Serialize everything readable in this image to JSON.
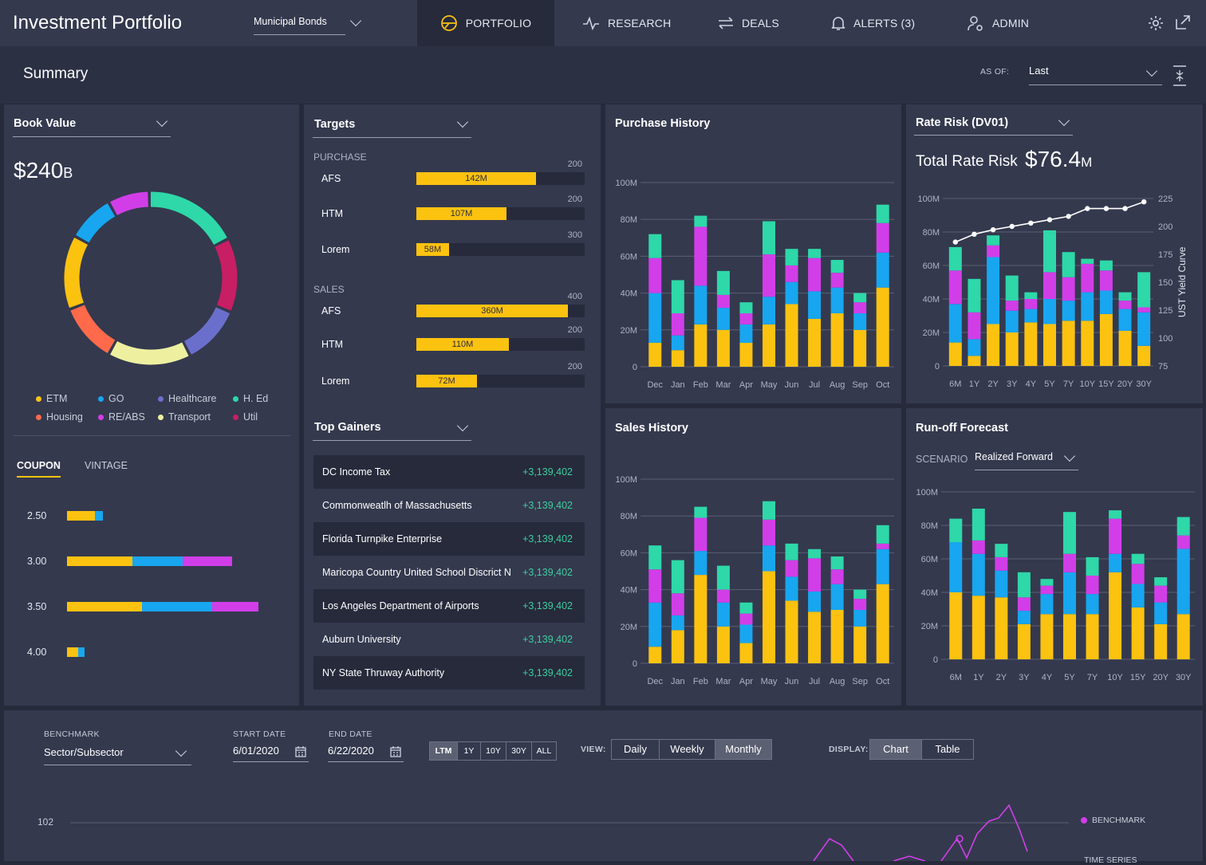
{
  "app": {
    "title": "Investment Portfolio"
  },
  "header": {
    "selector": "Municipal Bonds",
    "nav": [
      {
        "label": "PORTFOLIO",
        "icon": "portfolio-icon"
      },
      {
        "label": "RESEARCH",
        "icon": "pulse-icon"
      },
      {
        "label": "DEALS",
        "icon": "swap-arrows-icon"
      },
      {
        "label": "ALERTS (3)",
        "icon": "bell-icon"
      },
      {
        "label": "ADMIN",
        "icon": "user-gear-icon"
      }
    ]
  },
  "summary": {
    "title": "Summary",
    "as_of_label": "AS OF:",
    "as_of_value": "Last"
  },
  "book_value": {
    "title": "Book Value",
    "total": "$240",
    "unit": "B",
    "legend": [
      {
        "label": "ETM",
        "color": "#fcc210"
      },
      {
        "label": "GO",
        "color": "#18a6f0"
      },
      {
        "label": "Healthcare",
        "color": "#6b6fcc"
      },
      {
        "label": "H. Ed",
        "color": "#2ed8a8"
      },
      {
        "label": "Housing",
        "color": "#ff6a4a"
      },
      {
        "label": "RE/ABS",
        "color": "#d13ee8"
      },
      {
        "label": "Transport",
        "color": "#eef0a0"
      },
      {
        "label": "Util",
        "color": "#c81e64"
      }
    ],
    "tabs": [
      "COUPON",
      "VINTAGE"
    ],
    "coupons": [
      {
        "label": "2.50",
        "values": [
          35,
          10,
          0
        ]
      },
      {
        "label": "3.00",
        "values": [
          82,
          63,
          62
        ]
      },
      {
        "label": "3.50",
        "values": [
          94,
          88,
          58
        ]
      },
      {
        "label": "4.00",
        "values": [
          14,
          8,
          0
        ]
      }
    ]
  },
  "targets": {
    "title": "Targets",
    "purchase_label": "PURCHASE",
    "sales_label": "SALES",
    "purchase": [
      {
        "label": "AFS",
        "value": "142M",
        "max": "200",
        "fraction": 0.71
      },
      {
        "label": "HTM",
        "value": "107M",
        "max": "200",
        "fraction": 0.535
      },
      {
        "label": "Lorem",
        "value": "58M",
        "max": "300",
        "fraction": 0.193
      }
    ],
    "sales": [
      {
        "label": "AFS",
        "value": "360M",
        "max": "400",
        "fraction": 0.9
      },
      {
        "label": "HTM",
        "value": "110M",
        "max": "200",
        "fraction": 0.55
      },
      {
        "label": "Lorem",
        "value": "72M",
        "max": "200",
        "fraction": 0.36
      }
    ]
  },
  "top_gainers": {
    "title": "Top Gainers",
    "rows": [
      {
        "name": "DC Income Tax",
        "value": "+3,139,402"
      },
      {
        "name": "Commonweatlh of Massachusetts",
        "value": "+3,139,402"
      },
      {
        "name": "Florida Turnpike Enterprise",
        "value": "+3,139,402"
      },
      {
        "name": "Maricopa Country United School Discrict N",
        "value": "+3,139,402"
      },
      {
        "name": "Los Angeles Department of Airports",
        "value": "+3,139,402"
      },
      {
        "name": "Auburn University",
        "value": "+3,139,402"
      },
      {
        "name": "NY State Thruway Authority",
        "value": "+3,139,402"
      }
    ]
  },
  "rate_risk": {
    "title": "Rate Risk (DV01)",
    "total_label": "Total Rate Risk",
    "total_value": "$76.4",
    "total_unit": "M",
    "right_axis_label": "UST Yield Curve"
  },
  "runoff": {
    "title": "Run-off Forecast",
    "scenario_label": "SCENARIO",
    "scenario_value": "Realized Forward"
  },
  "purchase_history": {
    "title": "Purchase History"
  },
  "sales_history": {
    "title": "Sales History"
  },
  "bottom": {
    "benchmark_label": "BENCHMARK",
    "benchmark_value": "Sector/Subsector",
    "start_label": "START DATE",
    "start_value": "6/01/2020",
    "end_label": "END DATE",
    "end_value": "6/22/2020",
    "ranges": [
      "LTM",
      "1Y",
      "10Y",
      "30Y",
      "ALL"
    ],
    "view_label": "VIEW:",
    "views": [
      "Daily",
      "Weekly",
      "Monthly"
    ],
    "display_label": "DISPLAY:",
    "displays": [
      "Chart",
      "Table"
    ],
    "y_tick": "102",
    "legend_benchmark": "BENCHMARK",
    "legend_timeseries": "TIME SERIES"
  },
  "colors": {
    "yellow": "#fcc210",
    "blue": "#18a6f0",
    "magenta": "#d13ee8",
    "teal": "#2ed8a8"
  },
  "chart_data": [
    {
      "type": "bar",
      "id": "purchase-history",
      "title": "Purchase History",
      "categories": [
        "Dec",
        "Jan",
        "Feb",
        "Mar",
        "Apr",
        "May",
        "Jun",
        "Jul",
        "Aug",
        "Sep",
        "Oct"
      ],
      "ylim": [
        0,
        100
      ],
      "yticks": [
        "0",
        "20M",
        "40M",
        "60M",
        "80M",
        "100M"
      ],
      "series": [
        {
          "values": [
            13,
            9,
            23,
            20,
            13,
            23,
            34,
            26,
            29,
            20,
            43
          ]
        },
        {
          "values": [
            27,
            8,
            21,
            12,
            10,
            15,
            12,
            15,
            14,
            9,
            19
          ]
        },
        {
          "values": [
            19,
            12,
            32,
            7,
            6,
            23,
            9,
            18,
            8,
            6,
            16
          ]
        },
        {
          "values": [
            13,
            18,
            6,
            13,
            6,
            18,
            9,
            5,
            7,
            5,
            10
          ]
        }
      ]
    },
    {
      "type": "bar",
      "id": "sales-history",
      "title": "Sales History",
      "categories": [
        "Dec",
        "Jan",
        "Feb",
        "Mar",
        "Apr",
        "May",
        "Jun",
        "Jul",
        "Aug",
        "Sep",
        "Oct"
      ],
      "ylim": [
        0,
        100
      ],
      "yticks": [
        "0",
        "20M",
        "40M",
        "60M",
        "80M",
        "100M"
      ],
      "series": [
        {
          "values": [
            9,
            18,
            48,
            20,
            11,
            50,
            34,
            28,
            29,
            20,
            43
          ]
        },
        {
          "values": [
            24,
            8,
            13,
            13,
            10,
            14,
            13,
            11,
            14,
            9,
            19
          ]
        },
        {
          "values": [
            18,
            12,
            18,
            7,
            6,
            14,
            9,
            18,
            8,
            6,
            3
          ]
        },
        {
          "values": [
            13,
            18,
            6,
            13,
            6,
            10,
            9,
            5,
            7,
            5,
            10
          ]
        }
      ]
    },
    {
      "type": "bar",
      "id": "rate-risk",
      "title": "Rate Risk (DV01)",
      "categories": [
        "6M",
        "1Y",
        "2Y",
        "3Y",
        "4Y",
        "5Y",
        "7Y",
        "10Y",
        "15Y",
        "20Y",
        "30Y"
      ],
      "ylim": [
        0,
        100
      ],
      "yticks": [
        "0",
        "20M",
        "40M",
        "60M",
        "80M",
        "100M"
      ],
      "y2ticks": [
        "75",
        "100",
        "125",
        "150",
        "175",
        "200",
        "225"
      ],
      "y2lim": [
        75,
        225
      ],
      "y2label": "UST Yield Curve",
      "series": [
        {
          "values": [
            14,
            6,
            25,
            20,
            26,
            25,
            27,
            27,
            31,
            21,
            12
          ]
        },
        {
          "values": [
            23,
            10,
            40,
            13,
            8,
            15,
            12,
            17,
            14,
            13,
            20
          ]
        },
        {
          "values": [
            20,
            16,
            7,
            6,
            6,
            16,
            14,
            17,
            12,
            5,
            3
          ]
        },
        {
          "values": [
            14,
            20,
            6,
            15,
            4,
            25,
            15,
            3,
            6,
            5,
            21
          ]
        }
      ],
      "line": [
        186,
        193,
        197,
        200,
        203,
        206,
        209,
        216,
        216,
        216,
        222
      ]
    },
    {
      "type": "bar",
      "id": "runoff-forecast",
      "title": "Run-off Forecast",
      "categories": [
        "6M",
        "1Y",
        "2Y",
        "3Y",
        "4Y",
        "5Y",
        "7Y",
        "10Y",
        "15Y",
        "20Y",
        "30Y"
      ],
      "ylim": [
        0,
        100
      ],
      "yticks": [
        "0",
        "20M",
        "40M",
        "60M",
        "80M",
        "100M"
      ],
      "series": [
        {
          "values": [
            40,
            38,
            37,
            21,
            27,
            27,
            27,
            52,
            31,
            21,
            27
          ]
        },
        {
          "values": [
            30,
            25,
            16,
            8,
            12,
            25,
            12,
            11,
            14,
            13,
            39
          ]
        },
        {
          "values": [
            0,
            8,
            8,
            8,
            5,
            11,
            11,
            21,
            12,
            10,
            8
          ]
        },
        {
          "values": [
            14,
            19,
            8,
            15,
            4,
            25,
            11,
            5,
            6,
            5,
            11
          ]
        }
      ]
    }
  ]
}
